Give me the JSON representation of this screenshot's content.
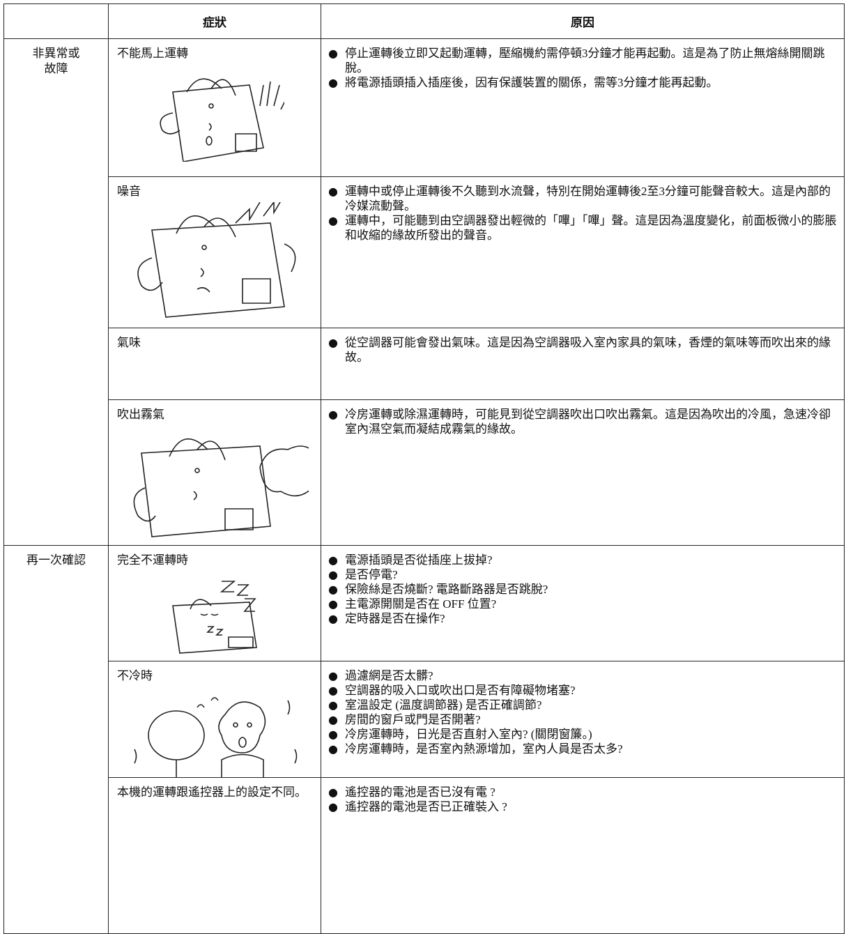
{
  "table": {
    "header": {
      "symptom": "症狀",
      "cause": "原因"
    },
    "groups": [
      {
        "label": [
          "非異常或",
          "故障"
        ],
        "rows": [
          {
            "symptom": "不能馬上運轉",
            "causes": [
              "停止運轉後立即又起動運轉，壓縮機約需停頓3分鐘才能再起動。這是為了防止無熔絲開關跳脫。",
              "將電源插頭插入插座後，因有保護裝置的關係，需等3分鐘才能再起動。"
            ]
          },
          {
            "symptom": "噪音",
            "causes": [
              "運轉中或停止運轉後不久聽到水流聲，特別在開始運轉後2至3分鐘可能聲音較大。這是內部的冷媒流動聲。",
              "運轉中，可能聽到由空調器發出輕微的「嗶」「嗶」聲。這是因為溫度變化，前面板微小的膨脹和收縮的緣故所發出的聲音。"
            ]
          },
          {
            "symptom": "氣味",
            "causes": [
              "從空調器可能會發出氣味。這是因為空調器吸入室內家具的氣味，香煙的氣味等而吹出來的緣故。"
            ]
          },
          {
            "symptom": "吹出霧氣",
            "causes": [
              "冷房運轉或除濕運轉時，可能見到從空調器吹出口吹出霧氣。這是因為吹出的冷風，急速冷卻室內濕空氣而凝結成霧氣的緣故。"
            ]
          }
        ]
      },
      {
        "label": [
          "再一次確認"
        ],
        "rows": [
          {
            "symptom": "完全不運轉時",
            "causes": [
              "電源插頭是否從插座上拔掉?",
              "是否停電?",
              "保險絲是否燒斷? 電路斷路器是否跳脫?",
              "主電源開關是否在 OFF 位置?",
              "定時器是否在操作?"
            ]
          },
          {
            "symptom": "不冷時",
            "causes": [
              "過濾網是否太髒?",
              "空調器的吸入口或吹出口是否有障礙物堵塞?",
              "室溫設定 (溫度調節器) 是否正確調節?",
              "房間的窗戶或門是否開著?",
              "冷房運轉時，日光是否直射入室內? (關閉窗簾。)",
              "冷房運轉時，是否室內熱源增加，室內人員是否太多?"
            ]
          },
          {
            "symptom": "本機的運轉跟遙控器上的設定不同。",
            "causes": [
              "遙控器的電池是否已沒有電 ?",
              "遙控器的電池是否已正確裝入 ?"
            ]
          }
        ]
      }
    ]
  }
}
